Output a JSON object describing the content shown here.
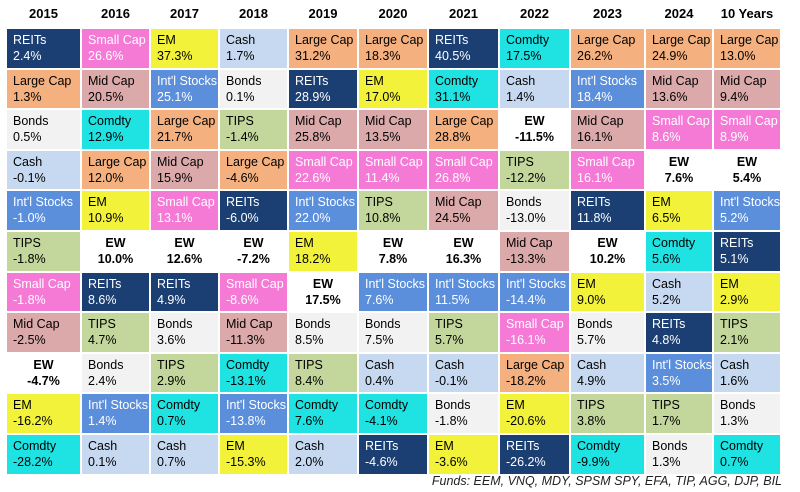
{
  "chart_data": {
    "type": "table",
    "columns": [
      "2015",
      "2016",
      "2017",
      "2018",
      "2019",
      "2020",
      "2021",
      "2022",
      "2023",
      "2024",
      "10 Years"
    ],
    "cells": [
      [
        [
          "REITs",
          "2.4%"
        ],
        [
          "Large Cap",
          "1.3%"
        ],
        [
          "Bonds",
          "0.5%"
        ],
        [
          "Cash",
          "-0.1%"
        ],
        [
          "Int'l Stocks",
          "-1.0%"
        ],
        [
          "TIPS",
          "-1.8%"
        ],
        [
          "Small Cap",
          "-1.8%"
        ],
        [
          "Mid Cap",
          "-2.5%"
        ],
        [
          "EW",
          "-4.7%"
        ],
        [
          "EM",
          "-16.2%"
        ],
        [
          "Comdty",
          "-28.2%"
        ]
      ],
      [
        [
          "Small Cap",
          "26.6%"
        ],
        [
          "Mid Cap",
          "20.5%"
        ],
        [
          "Comdty",
          "12.9%"
        ],
        [
          "Large Cap",
          "12.0%"
        ],
        [
          "EM",
          "10.9%"
        ],
        [
          "EW",
          "10.0%"
        ],
        [
          "REITs",
          "8.6%"
        ],
        [
          "TIPS",
          "4.7%"
        ],
        [
          "Bonds",
          "2.4%"
        ],
        [
          "Int'l Stocks",
          "1.4%"
        ],
        [
          "Cash",
          "0.1%"
        ]
      ],
      [
        [
          "EM",
          "37.3%"
        ],
        [
          "Int'l Stocks",
          "25.1%"
        ],
        [
          "Large Cap",
          "21.7%"
        ],
        [
          "Mid Cap",
          "15.9%"
        ],
        [
          "Small Cap",
          "13.1%"
        ],
        [
          "EW",
          "12.6%"
        ],
        [
          "REITs",
          "4.9%"
        ],
        [
          "Bonds",
          "3.6%"
        ],
        [
          "TIPS",
          "2.9%"
        ],
        [
          "Comdty",
          "0.7%"
        ],
        [
          "Cash",
          "0.7%"
        ]
      ],
      [
        [
          "Cash",
          "1.7%"
        ],
        [
          "Bonds",
          "0.1%"
        ],
        [
          "TIPS",
          "-1.4%"
        ],
        [
          "Large Cap",
          "-4.6%"
        ],
        [
          "REITs",
          "-6.0%"
        ],
        [
          "EW",
          "-7.2%"
        ],
        [
          "Small Cap",
          "-8.6%"
        ],
        [
          "Mid Cap",
          "-11.3%"
        ],
        [
          "Comdty",
          "-13.1%"
        ],
        [
          "Int'l Stocks",
          "-13.8%"
        ],
        [
          "EM",
          "-15.3%"
        ]
      ],
      [
        [
          "Large Cap",
          "31.2%"
        ],
        [
          "REITs",
          "28.9%"
        ],
        [
          "Mid Cap",
          "25.8%"
        ],
        [
          "Small Cap",
          "22.6%"
        ],
        [
          "Int'l Stocks",
          "22.0%"
        ],
        [
          "EM",
          "18.2%"
        ],
        [
          "EW",
          "17.5%"
        ],
        [
          "Bonds",
          "8.5%"
        ],
        [
          "TIPS",
          "8.4%"
        ],
        [
          "Comdty",
          "7.6%"
        ],
        [
          "Cash",
          "2.0%"
        ]
      ],
      [
        [
          "Large Cap",
          "18.3%"
        ],
        [
          "EM",
          "17.0%"
        ],
        [
          "Mid Cap",
          "13.5%"
        ],
        [
          "Small Cap",
          "11.4%"
        ],
        [
          "TIPS",
          "10.8%"
        ],
        [
          "EW",
          "7.8%"
        ],
        [
          "Int'l Stocks",
          "7.6%"
        ],
        [
          "Bonds",
          "7.5%"
        ],
        [
          "Cash",
          "0.4%"
        ],
        [
          "Comdty",
          "-4.1%"
        ],
        [
          "REITs",
          "-4.6%"
        ]
      ],
      [
        [
          "REITs",
          "40.5%"
        ],
        [
          "Comdty",
          "31.1%"
        ],
        [
          "Large Cap",
          "28.8%"
        ],
        [
          "Small Cap",
          "26.8%"
        ],
        [
          "Mid Cap",
          "24.5%"
        ],
        [
          "EW",
          "16.3%"
        ],
        [
          "Int'l Stocks",
          "11.5%"
        ],
        [
          "TIPS",
          "5.7%"
        ],
        [
          "Cash",
          "-0.1%"
        ],
        [
          "Bonds",
          "-1.8%"
        ],
        [
          "EM",
          "-3.6%"
        ]
      ],
      [
        [
          "Comdty",
          "17.5%"
        ],
        [
          "Cash",
          "1.4%"
        ],
        [
          "EW",
          "-11.5%"
        ],
        [
          "TIPS",
          "-12.2%"
        ],
        [
          "Bonds",
          "-13.0%"
        ],
        [
          "Mid Cap",
          "-13.3%"
        ],
        [
          "Int'l Stocks",
          "-14.4%"
        ],
        [
          "Small Cap",
          "-16.1%"
        ],
        [
          "Large Cap",
          "-18.2%"
        ],
        [
          "EM",
          "-20.6%"
        ],
        [
          "REITs",
          "-26.2%"
        ]
      ],
      [
        [
          "Large Cap",
          "26.2%"
        ],
        [
          "Int'l Stocks",
          "18.4%"
        ],
        [
          "Mid Cap",
          "16.1%"
        ],
        [
          "Small Cap",
          "16.1%"
        ],
        [
          "REITs",
          "11.8%"
        ],
        [
          "EW",
          "10.2%"
        ],
        [
          "EM",
          "9.0%"
        ],
        [
          "Bonds",
          "5.7%"
        ],
        [
          "Cash",
          "4.9%"
        ],
        [
          "TIPS",
          "3.8%"
        ],
        [
          "Comdty",
          "-9.9%"
        ]
      ],
      [
        [
          "Large Cap",
          "24.9%"
        ],
        [
          "Mid Cap",
          "13.6%"
        ],
        [
          "Small Cap",
          "8.6%"
        ],
        [
          "EW",
          "7.6%"
        ],
        [
          "EM",
          "6.5%"
        ],
        [
          "Comdty",
          "5.6%"
        ],
        [
          "Cash",
          "5.2%"
        ],
        [
          "REITs",
          "4.8%"
        ],
        [
          "Int'l Stocks",
          "3.5%"
        ],
        [
          "TIPS",
          "1.7%"
        ],
        [
          "Bonds",
          "1.3%"
        ]
      ],
      [
        [
          "Large Cap",
          "13.0%"
        ],
        [
          "Mid Cap",
          "9.4%"
        ],
        [
          "Small Cap",
          "8.9%"
        ],
        [
          "EW",
          "5.4%"
        ],
        [
          "Int'l Stocks",
          "5.2%"
        ],
        [
          "REITs",
          "5.1%"
        ],
        [
          "EM",
          "2.9%"
        ],
        [
          "TIPS",
          "2.1%"
        ],
        [
          "Cash",
          "1.6%"
        ],
        [
          "Bonds",
          "1.3%"
        ],
        [
          "Comdty",
          "0.7%"
        ]
      ]
    ],
    "asset_colors": {
      "REITs": "#1b3f73",
      "Small Cap": "#f47ad6",
      "EM": "#f2f23a",
      "Cash": "#c6d9f0",
      "Large Cap": "#f5b07f",
      "Comdty": "#1fe3e3",
      "Mid Cap": "#dba9aa",
      "Int'l Stocks": "#5b8fdc",
      "Bonds": "#f2f2f2",
      "TIPS": "#c3d69b",
      "EW": "#ffffff"
    },
    "light_text_assets": [
      "REITs",
      "Small Cap",
      "Int'l Stocks"
    ],
    "bold_assets": [
      "EW"
    ]
  },
  "footnote": "Funds: EEM, VNQ, MDY, SPSM SPY, EFA, TIP, AGG, DJP, BIL"
}
